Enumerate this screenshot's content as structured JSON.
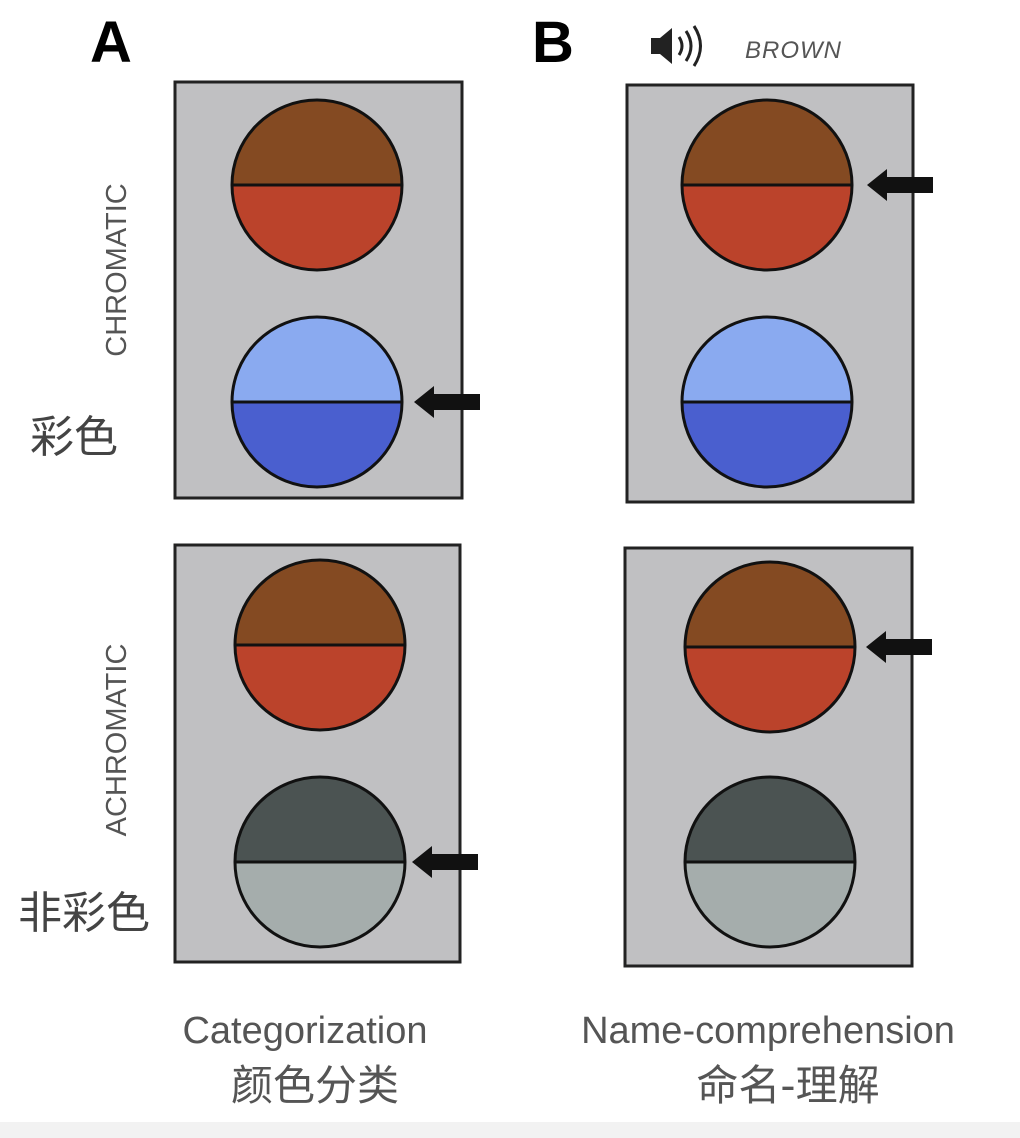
{
  "panels": {
    "a": {
      "letter": "A",
      "caption": "Categorization",
      "caption_cn": "颜色分类"
    },
    "b": {
      "letter": "B",
      "audio_word": "BROWN",
      "caption": "Name-comprehension",
      "caption_cn": "命名-理解"
    }
  },
  "rows": {
    "chromatic": {
      "label": "CHROMATIC",
      "label_cn": "彩色"
    },
    "achromatic": {
      "label": "ACHROMATIC",
      "label_cn": "非彩色"
    }
  },
  "icons": {
    "audio": "speaker-icon",
    "arrow": "arrow-left-icon"
  },
  "colors": {
    "panel": "#c0c0c2",
    "brown": "#844a22",
    "red": "#bb432b",
    "light_blue": "#8aaaf0",
    "blue": "#4a5fcf",
    "dark_gray": "#4b5352",
    "light_gray": "#a5adac"
  }
}
